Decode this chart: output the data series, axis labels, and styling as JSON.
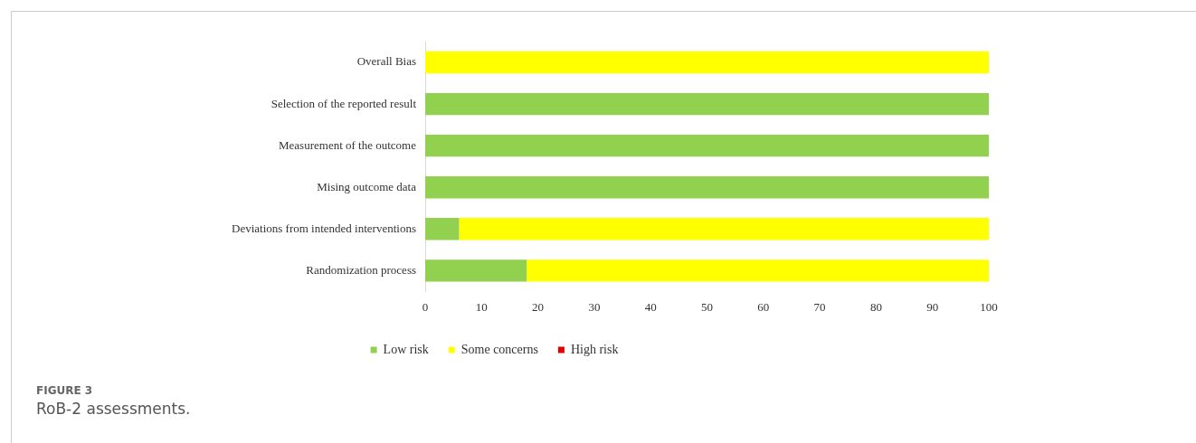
{
  "chart_data": {
    "type": "bar",
    "orientation": "horizontal",
    "stacked": true,
    "categories": [
      "Overall Bias",
      "Selection of the reported result",
      "Measurement of the outcome",
      "Mising outcome data",
      "Deviations from intended interventions",
      "Randomization process"
    ],
    "series": [
      {
        "name": "Low risk",
        "color": "#92d050",
        "values": [
          0,
          100,
          100,
          100,
          6,
          18
        ]
      },
      {
        "name": "Some concerns",
        "color": "#ffff00",
        "values": [
          100,
          0,
          0,
          0,
          94,
          82
        ]
      },
      {
        "name": "High risk",
        "color": "#e00000",
        "values": [
          0,
          0,
          0,
          0,
          0,
          0
        ]
      }
    ],
    "xlim": [
      0,
      100
    ],
    "xticks": [
      0,
      10,
      20,
      30,
      40,
      50,
      60,
      70,
      80,
      90,
      100
    ],
    "grid": false,
    "legend": "bottom",
    "annotations": [
      "FIGURE 3",
      "RoB-2 assessments."
    ]
  }
}
